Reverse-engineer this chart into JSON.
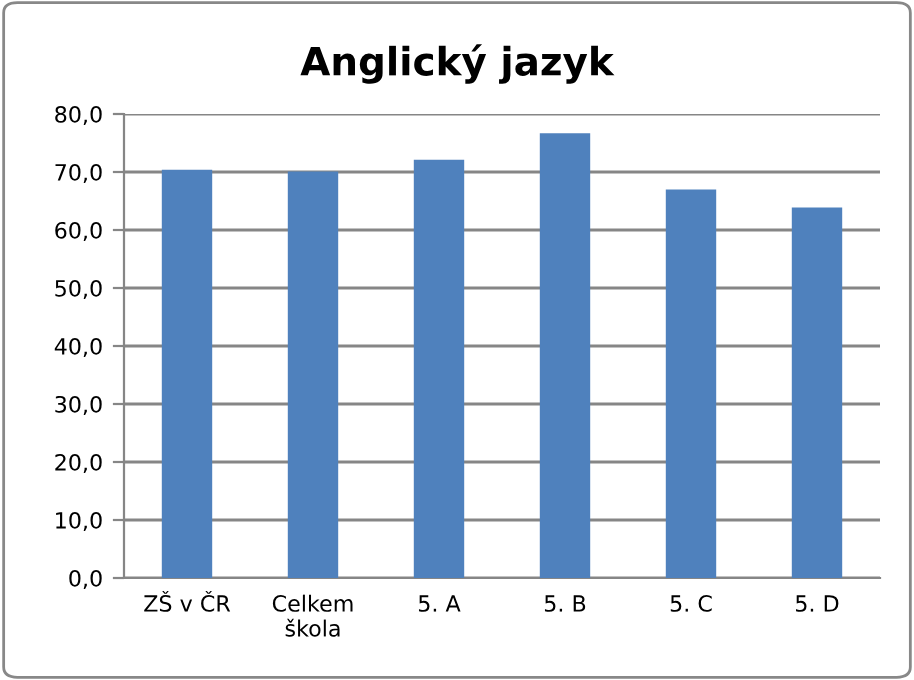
{
  "chart_data": {
    "type": "bar",
    "title": "Anglický jazyk",
    "categories": [
      "ZŠ v ČR",
      "Celkem\nškola",
      "5. A",
      "5. B",
      "5. C",
      "5. D"
    ],
    "values": [
      70.4,
      70.1,
      72.1,
      76.7,
      67.0,
      63.9
    ],
    "color": "#4f81bd",
    "ylim": [
      0,
      80
    ],
    "yticks": [
      {
        "value": 0,
        "label": "0,0"
      },
      {
        "value": 10,
        "label": "10,0"
      },
      {
        "value": 20,
        "label": "20,0"
      },
      {
        "value": 30,
        "label": "30,0"
      },
      {
        "value": 40,
        "label": "40,0"
      },
      {
        "value": 50,
        "label": "50,0"
      },
      {
        "value": 60,
        "label": "60,0"
      },
      {
        "value": 70,
        "label": "70,0"
      },
      {
        "value": 80,
        "label": "80,0"
      }
    ],
    "grid": "y",
    "legend": false
  }
}
